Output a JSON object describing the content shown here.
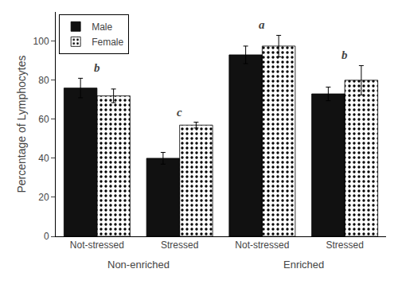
{
  "chart_data": {
    "type": "bar",
    "categories": [
      "Not-stressed",
      "Stressed",
      "Not-stressed",
      "Stressed"
    ],
    "series": [
      {
        "name": "Male",
        "color": "#111111",
        "values": [
          76.0,
          40.0,
          93.0,
          73.0
        ],
        "errors": [
          5.0,
          3.0,
          4.5,
          3.5
        ]
      },
      {
        "name": "Female",
        "color": "#c5dce0",
        "values": [
          72.0,
          57.0,
          97.5,
          80.0
        ],
        "errors": [
          3.5,
          1.5,
          5.5,
          7.5
        ]
      }
    ],
    "ylabel": "Percentage of Lymphocytes",
    "ylim": [
      0,
      115
    ],
    "yticks": [
      0,
      20,
      40,
      60,
      80,
      100
    ],
    "grid": false,
    "legend": "upper left",
    "annotations": [
      {
        "text": "b",
        "category": 0
      },
      {
        "text": "c",
        "category": 1
      },
      {
        "text": "a",
        "category": 2
      },
      {
        "text": "b",
        "category": 3
      },
      {
        "text": "Non-enriched",
        "categories": [
          0,
          1
        ]
      },
      {
        "text": "Enriched",
        "categories": [
          2,
          3
        ]
      }
    ]
  }
}
